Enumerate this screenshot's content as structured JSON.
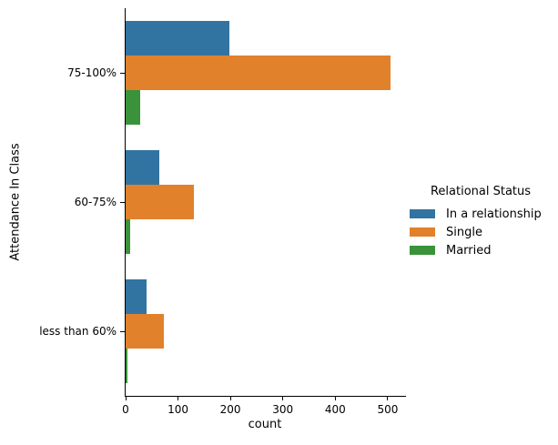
{
  "chart_data": {
    "type": "bar",
    "orientation": "horizontal",
    "title": "",
    "xlabel": "count",
    "ylabel": "Attendance In Class",
    "categories": [
      "75-100%",
      "60-75%",
      "less than 60%"
    ],
    "series": [
      {
        "name": "In a relationship",
        "color": "#3274a1",
        "values": [
          198,
          65,
          40
        ]
      },
      {
        "name": "Single",
        "color": "#e1812c",
        "values": [
          505,
          131,
          73
        ]
      },
      {
        "name": "Married",
        "color": "#3a923a",
        "values": [
          28,
          9,
          3
        ]
      }
    ],
    "xlim": [
      0,
      535
    ],
    "xticks": [
      0,
      100,
      200,
      300,
      400,
      500
    ],
    "grid": false,
    "legend_title": "Relational Status",
    "legend_position": "center-right",
    "axis_color": "#000000",
    "background_color": "#ffffff"
  }
}
